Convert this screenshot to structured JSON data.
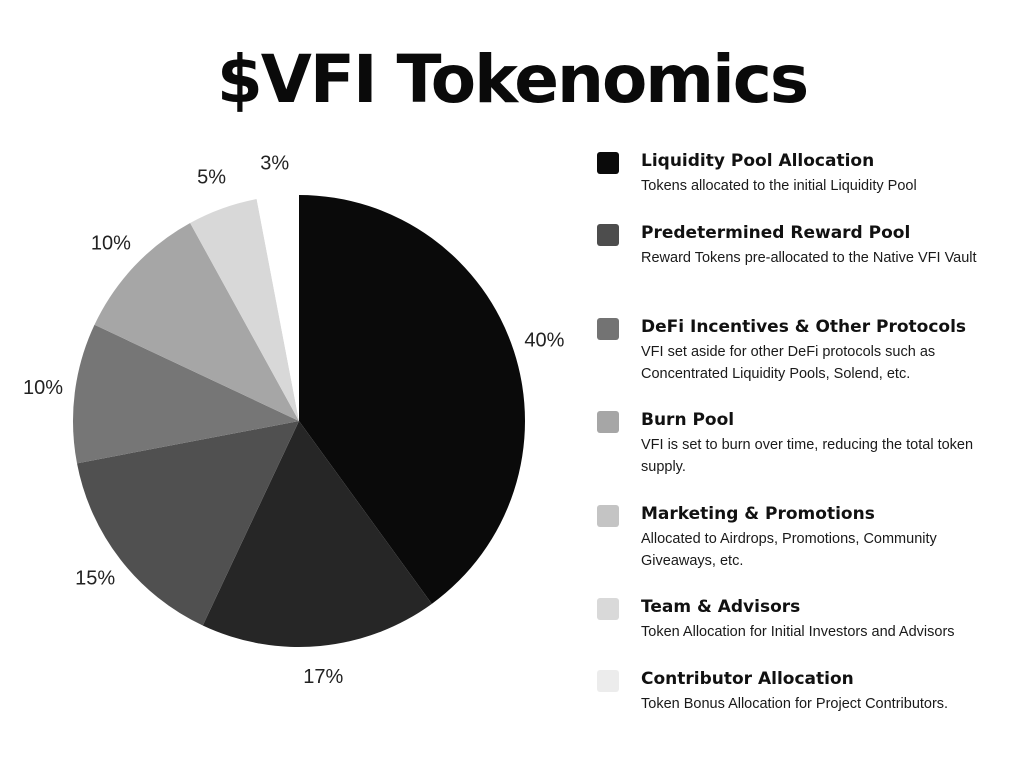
{
  "title": "$VFI Tokenomics",
  "chart_data": {
    "type": "pie",
    "categories": [
      "Liquidity Pool Allocation",
      "Predetermined Reward Pool",
      "DeFi Incentives & Other Protocols",
      "Burn Pool",
      "Marketing & Promotions",
      "Team & Advisors",
      "Contributor Allocation"
    ],
    "pie_values": [
      40,
      17,
      15,
      10,
      10,
      5,
      3
    ],
    "labels": [
      "40%",
      "17%",
      "15%",
      "10%",
      "10%",
      "5%",
      "3%"
    ],
    "slice_colors": [
      "#0a0a0a",
      "#262626",
      "#505050",
      "#767676",
      "#a6a6a6",
      "#d8d8d8",
      "#ffffff"
    ],
    "start_angle_deg": 0,
    "direction": "clockwise",
    "legend_placement": "right"
  },
  "legend": [
    {
      "label": "Liquidity Pool Allocation",
      "desc": "Tokens allocated to the initial Liquidity Pool",
      "color": "#0a0a0a"
    },
    {
      "label": "Predetermined Reward Pool",
      "desc": "Reward Tokens pre-allocated to the Native VFI Vault",
      "color": "#4d4d4d"
    },
    {
      "label": "DeFi Incentives & Other Protocols",
      "desc": "VFI set aside for other DeFi protocols such as Concentrated Liquidity Pools, Solend, etc.",
      "color": "#737373"
    },
    {
      "label": "Burn Pool",
      "desc": "VFI is set to burn over time, reducing the total token supply.",
      "color": "#a6a6a6"
    },
    {
      "label": "Marketing & Promotions",
      "desc": "Allocated to Airdrops, Promotions, Community Giveaways, etc.",
      "color": "#c4c4c4"
    },
    {
      "label": "Team & Advisors",
      "desc": "Token Allocation for Initial Investors and Advisors",
      "color": "#d9d9d9"
    },
    {
      "label": "Contributor Allocation",
      "desc": "Token Bonus Allocation for Project Contributors.",
      "color": "#ececec"
    }
  ]
}
